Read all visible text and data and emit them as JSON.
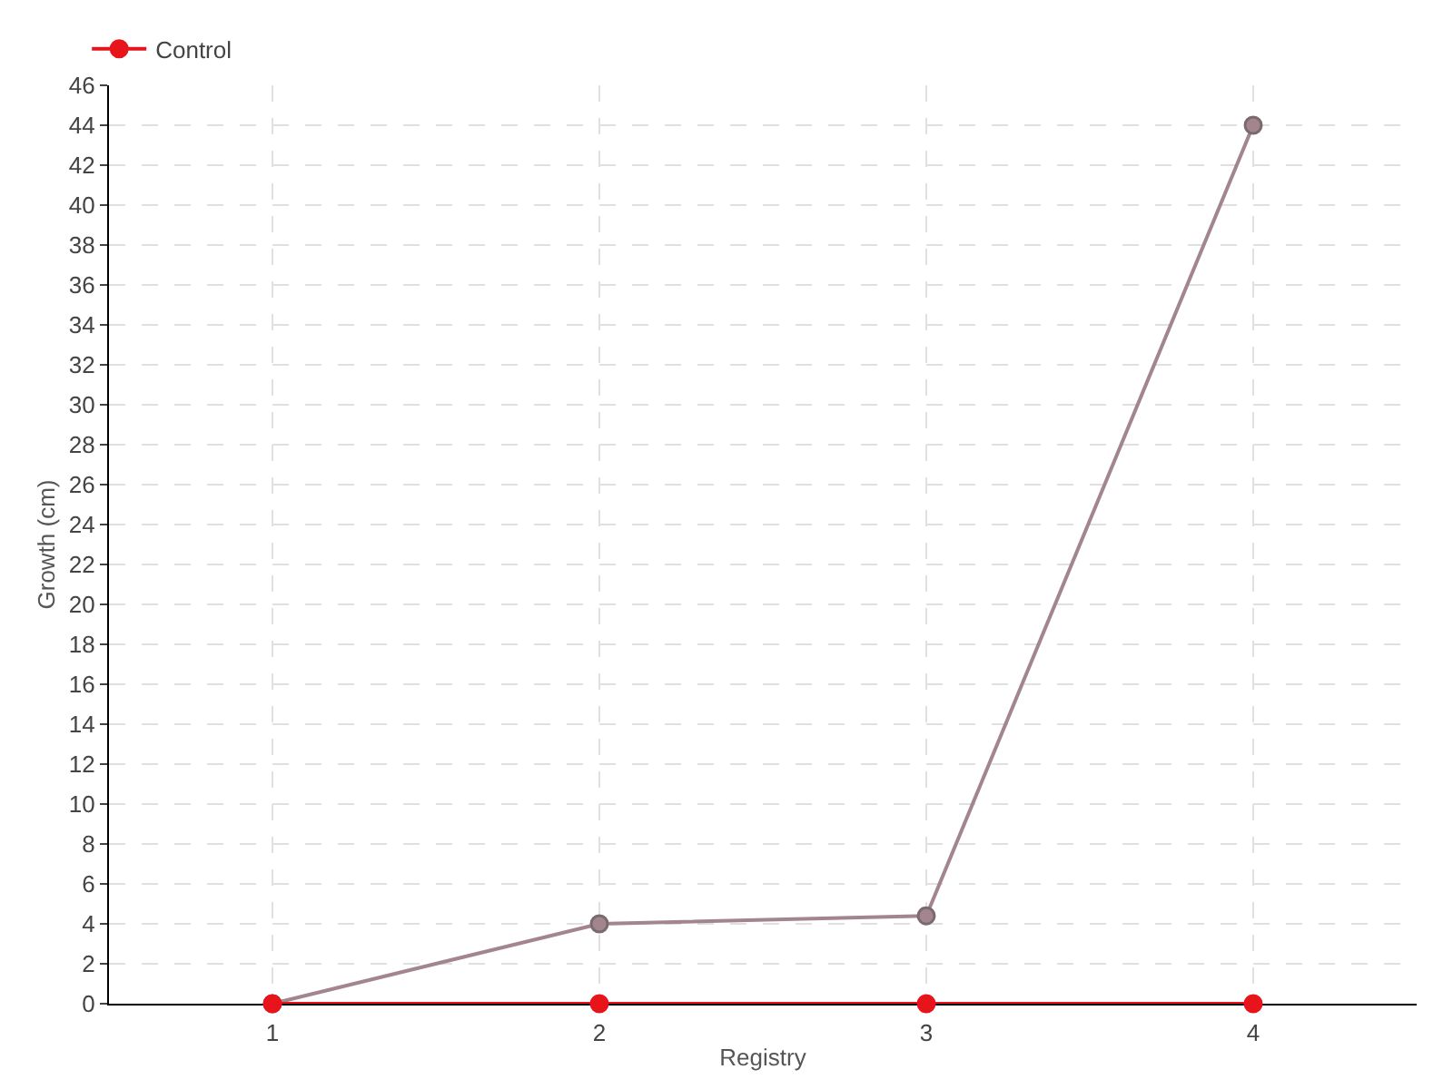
{
  "chart_data": {
    "type": "line",
    "xlabel": "Registry",
    "ylabel": "Growth (cm)",
    "categories": [
      "1",
      "2",
      "3",
      "4"
    ],
    "series": [
      {
        "color": "#a3868d",
        "values": [
          0,
          4,
          4.4,
          44
        ]
      },
      {
        "name": "Control",
        "color": "#e8141c",
        "values": [
          0,
          0,
          0,
          0
        ]
      }
    ],
    "ylim": [
      0,
      46
    ],
    "yticks": [
      0,
      2,
      4,
      6,
      8,
      10,
      12,
      14,
      16,
      18,
      20,
      22,
      24,
      26,
      28,
      30,
      32,
      34,
      36,
      38,
      40,
      42,
      44,
      46
    ],
    "grid": true,
    "legend": "top left",
    "marker": "circle",
    "line_style": "solid"
  }
}
